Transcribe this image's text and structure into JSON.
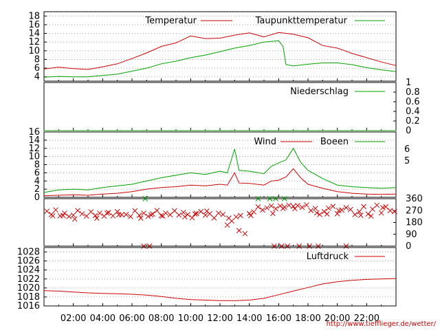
{
  "colors": {
    "red": "#cc0000",
    "green": "#00a000",
    "grid": "#a0a0a0"
  },
  "credit": "http://www.tiefflieger.de/wetter/",
  "x_axis": {
    "range_hours": [
      0,
      24
    ],
    "tick_labels": [
      "02:00",
      "04:00",
      "06:00",
      "08:00",
      "10:00",
      "12:00",
      "14:00",
      "16:00",
      "18:00",
      "20:00",
      "22:00"
    ]
  },
  "chart_data": [
    {
      "type": "line",
      "legend_placement": "top",
      "ylim": [
        3,
        19
      ],
      "yticks": [
        "4",
        "6",
        "8",
        "10",
        "12",
        "14",
        "16",
        "18"
      ],
      "grid": true,
      "series": [
        {
          "name": "Temperatur",
          "color": "#cc0000",
          "x": [
            0,
            1,
            2,
            3,
            4,
            5,
            6,
            7,
            8,
            9,
            10,
            11,
            12,
            13,
            14,
            15,
            16,
            17,
            18,
            19,
            20,
            21,
            22,
            23,
            24
          ],
          "values": [
            5.8,
            6.2,
            5.9,
            5.7,
            6.3,
            7.0,
            8.2,
            9.5,
            11.0,
            11.8,
            13.4,
            12.8,
            12.9,
            13.6,
            14.1,
            13.2,
            14.2,
            13.8,
            13.0,
            11.2,
            10.6,
            9.4,
            8.4,
            7.4,
            6.6
          ]
        },
        {
          "name": "Taupunkttemperatur",
          "color": "#00a000",
          "x": [
            0,
            1,
            2,
            3,
            4,
            5,
            6,
            7,
            8,
            9,
            10,
            11,
            12,
            13,
            14,
            15,
            16,
            16.3,
            16.5,
            17,
            18,
            19,
            20,
            21,
            22,
            23,
            24
          ],
          "values": [
            3.9,
            4.1,
            4.0,
            4.0,
            4.3,
            4.6,
            5.3,
            6.0,
            7.0,
            7.6,
            8.4,
            9.0,
            9.8,
            10.6,
            11.2,
            12.0,
            12.3,
            11.0,
            6.8,
            6.5,
            6.9,
            7.2,
            7.2,
            6.8,
            6.1,
            5.6,
            5.2
          ]
        }
      ]
    },
    {
      "type": "line",
      "legend_placement": "top-right",
      "ylim": [
        0,
        1
      ],
      "yticks": [
        "0",
        "0.2",
        "0.4",
        "0.6",
        "0.8",
        "1"
      ],
      "series": [
        {
          "name": "Niederschlag",
          "color": "#00a000",
          "x": [
            0,
            24
          ],
          "values": [
            0,
            0
          ]
        }
      ]
    },
    {
      "type": "line",
      "legend_placement": "top-right",
      "ylim": [
        0,
        16
      ],
      "yticks": [
        "0",
        "2",
        "4",
        "6",
        "8",
        "10",
        "12",
        "14",
        "16"
      ],
      "y2ticks": [
        "5",
        "6"
      ],
      "grid": true,
      "series": [
        {
          "name": "Wind",
          "color": "#cc0000",
          "x": [
            0,
            1,
            2,
            3,
            4,
            5,
            6,
            7,
            8,
            9,
            10,
            11,
            12,
            12.5,
            13,
            13.3,
            14,
            15,
            15.5,
            16,
            16.5,
            17,
            17.5,
            18,
            19,
            20,
            21,
            22,
            23,
            24
          ],
          "values": [
            0.4,
            0.5,
            0.6,
            0.5,
            0.8,
            1.0,
            1.4,
            2.0,
            2.4,
            2.6,
            3.0,
            2.8,
            3.2,
            3.0,
            6.0,
            3.5,
            3.4,
            3.0,
            4.0,
            4.2,
            5.0,
            7.0,
            4.8,
            3.2,
            2.2,
            1.4,
            1.0,
            0.8,
            0.7,
            0.8
          ]
        },
        {
          "name": "Boeen",
          "color": "#00a000",
          "x": [
            0,
            1,
            2,
            3,
            4,
            5,
            6,
            7,
            8,
            9,
            10,
            11,
            12,
            12.5,
            13,
            13.3,
            14,
            15,
            15.5,
            16,
            16.5,
            17,
            17.5,
            18,
            19,
            20,
            21,
            22,
            23,
            24
          ],
          "values": [
            1.2,
            1.8,
            2.0,
            1.8,
            2.4,
            2.8,
            3.2,
            4.0,
            4.8,
            5.4,
            6.0,
            5.6,
            6.4,
            6.0,
            11.8,
            6.6,
            6.4,
            5.8,
            7.6,
            8.4,
            9.2,
            12.0,
            8.6,
            6.6,
            4.6,
            3.0,
            2.6,
            2.4,
            2.2,
            2.4
          ]
        }
      ]
    },
    {
      "type": "scatter",
      "ylim": [
        0,
        360
      ],
      "yticks": [
        "0",
        "90",
        "180",
        "270",
        "360"
      ],
      "series": [
        {
          "name": "",
          "color": "#cc0000",
          "x": [
            0.2,
            0.5,
            0.8,
            1.1,
            1.4,
            1.7,
            2.0,
            2.3,
            2.6,
            2.9,
            3.2,
            3.5,
            3.8,
            4.1,
            4.4,
            4.7,
            5.0,
            5.3,
            5.6,
            5.9,
            6.2,
            6.5,
            6.8,
            7.1,
            7.4,
            7.7,
            8.0,
            8.3,
            8.6,
            8.9,
            9.2,
            9.5,
            9.8,
            10.1,
            10.4,
            10.7,
            11.0,
            11.3,
            11.6,
            11.9,
            12.2,
            12.5,
            12.8,
            13.1,
            13.4,
            13.7,
            14.0,
            14.3,
            14.6,
            14.9,
            15.2,
            15.5,
            15.8,
            16.1,
            16.4,
            16.7,
            17.0,
            17.3,
            17.6,
            17.9,
            18.2,
            18.5,
            18.8,
            19.1,
            19.4,
            19.7,
            20.0,
            20.3,
            20.6,
            20.9,
            21.2,
            21.5,
            21.8,
            22.1,
            22.4,
            22.7,
            23.0,
            23.3,
            23.6,
            23.9,
            0.6,
            2.1,
            3.6,
            5.1,
            6.6,
            8.1,
            9.6,
            11.1,
            12.6,
            14.1,
            15.6,
            17.1,
            18.6,
            20.1,
            21.6,
            23.1,
            1.3,
            4.3,
            7.3,
            10.3,
            13.3,
            16.3,
            19.3,
            22.3,
            6.8,
            7.2,
            15.7,
            16.2,
            16.6,
            17.4,
            18.1,
            18.7,
            20.6
          ],
          "values": [
            265,
            240,
            275,
            230,
            250,
            225,
            235,
            270,
            245,
            228,
            260,
            232,
            250,
            228,
            255,
            230,
            262,
            238,
            240,
            225,
            268,
            234,
            250,
            226,
            244,
            270,
            232,
            250,
            238,
            268,
            236,
            256,
            240,
            215,
            248,
            262,
            235,
            246,
            214,
            250,
            240,
            160,
            190,
            222,
            232,
            95,
            248,
            260,
            298,
            274,
            290,
            305,
            284,
            305,
            296,
            310,
            302,
            308,
            294,
            312,
            270,
            286,
            240,
            262,
            288,
            302,
            246,
            274,
            292,
            278,
            240,
            262,
            300,
            244,
            280,
            310,
            252,
            298,
            270,
            262,
            230,
            205,
            212,
            238,
            212,
            228,
            222,
            266,
            212,
            232,
            248,
            284,
            252,
            270,
            234,
            292,
            232,
            250,
            236,
            244,
            118,
            286,
            244,
            228,
            0,
            0,
            0,
            0,
            0,
            0,
            0,
            0,
            0
          ]
        },
        {
          "name": "",
          "color": "#00a000",
          "x": [
            6.9,
            14.6,
            15.4,
            15.8,
            16.4
          ],
          "values": [
            360,
            360,
            360,
            360,
            360
          ]
        }
      ]
    },
    {
      "type": "line",
      "legend_placement": "top-right",
      "ylim": [
        1016,
        1029
      ],
      "yticks": [
        "1016",
        "1018",
        "1020",
        "1022",
        "1024",
        "1026",
        "1028"
      ],
      "grid": true,
      "series": [
        {
          "name": "Luftdruck",
          "color": "#cc0000",
          "x": [
            0,
            1,
            2,
            3,
            4,
            5,
            6,
            7,
            8,
            9,
            10,
            11,
            12,
            13,
            14,
            15,
            16,
            17,
            18,
            19,
            20,
            21,
            22,
            23,
            24
          ],
          "values": [
            1019.4,
            1019.3,
            1019.1,
            1018.9,
            1018.8,
            1018.7,
            1018.6,
            1018.4,
            1018.1,
            1017.7,
            1017.4,
            1017.3,
            1017.2,
            1017.2,
            1017.3,
            1017.7,
            1018.5,
            1019.3,
            1020.1,
            1020.9,
            1021.4,
            1021.7,
            1021.9,
            1022.0,
            1022.1
          ]
        }
      ]
    }
  ]
}
